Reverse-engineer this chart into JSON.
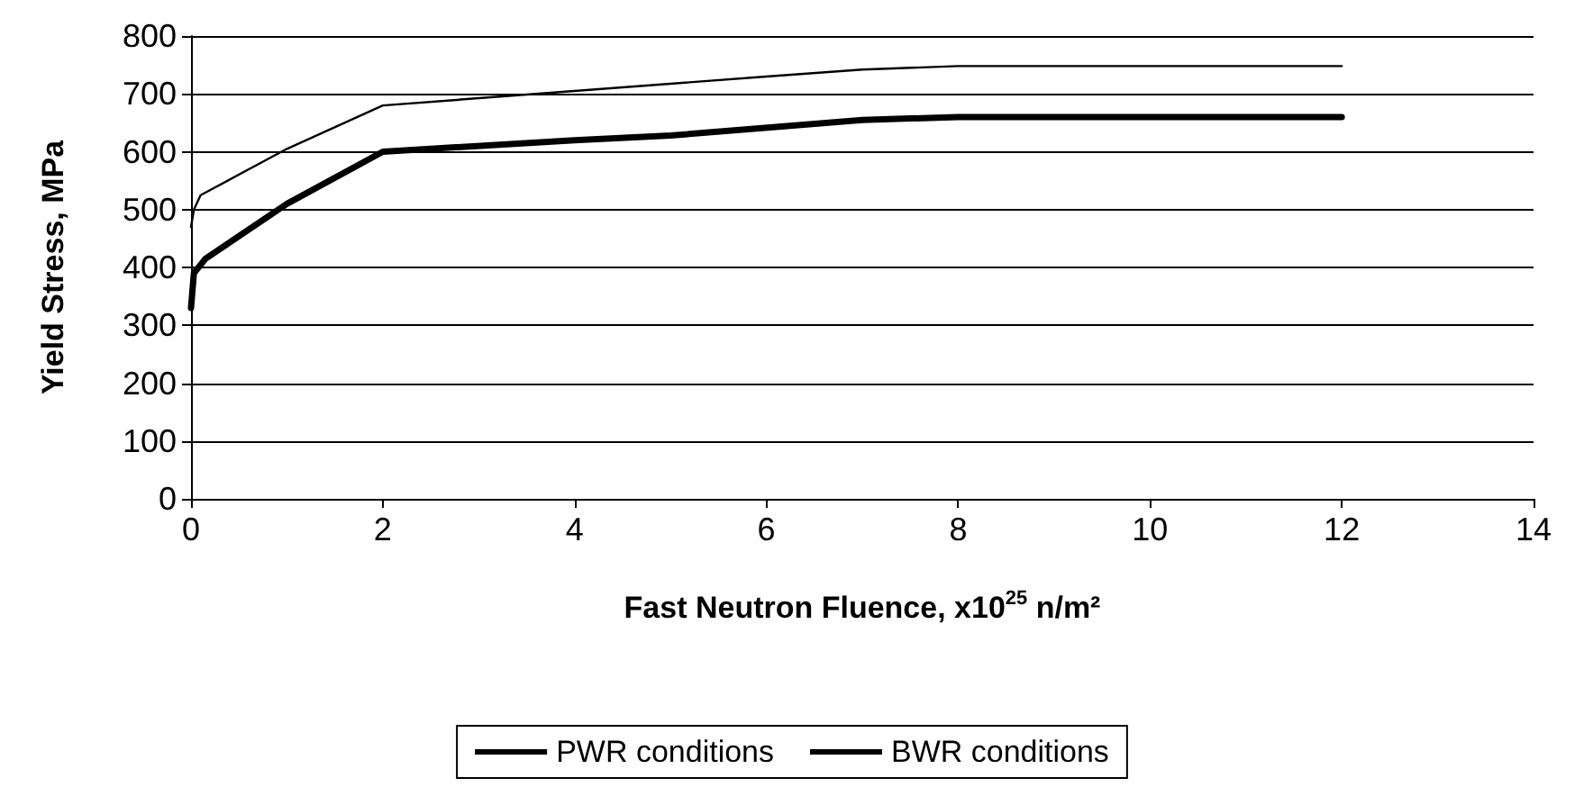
{
  "chart_data": {
    "type": "line",
    "xlabel": "Fast Neutron Fluence, x10$^{25}$ n/m²",
    "ylabel": "Yield Stress, MPa",
    "xlim": [
      0,
      14
    ],
    "xticks": [
      0,
      2,
      4,
      6,
      8,
      10,
      12,
      14
    ],
    "ylim": [
      0,
      800
    ],
    "yticks": [
      0,
      100,
      200,
      300,
      400,
      500,
      600,
      700,
      800
    ],
    "grid": "y",
    "legend": "bottom",
    "marker": "none",
    "line_style": "solid",
    "series": [
      {
        "name": "PWR conditions",
        "color": "#000000",
        "x": [
          0,
          0.03,
          0.1,
          1,
          2,
          4,
          6,
          7,
          8,
          12
        ],
        "values": [
          470,
          500,
          525,
          605,
          680,
          705,
          730,
          742,
          748,
          748
        ]
      },
      {
        "name": "BWR conditions",
        "color": "#000000",
        "x": [
          0,
          0.03,
          0.15,
          1,
          2,
          4,
          5,
          7,
          8,
          12
        ],
        "values": [
          330,
          390,
          415,
          510,
          600,
          620,
          628,
          655,
          660,
          660
        ]
      }
    ]
  }
}
